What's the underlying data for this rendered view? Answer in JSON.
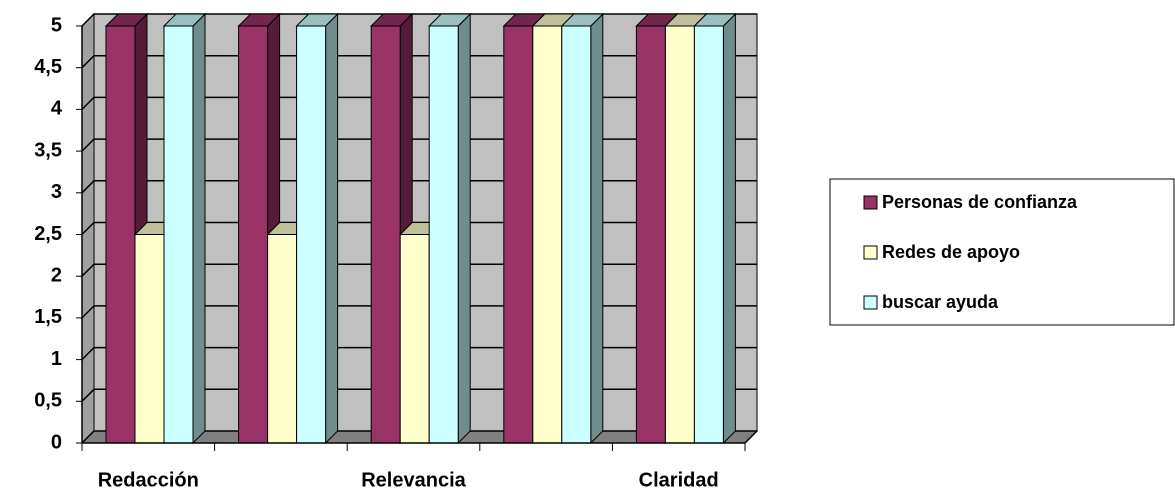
{
  "chart_data": {
    "type": "bar3d",
    "categories": [
      "Redacción",
      null,
      "Relevancia",
      null,
      "Claridad"
    ],
    "series": [
      {
        "name": "Personas de confianza",
        "color": "#993366",
        "values": [
          5,
          5,
          5,
          5,
          5
        ]
      },
      {
        "name": "Redes de apoyo",
        "color": "#ffffcc",
        "values": [
          2.5,
          2.5,
          2.5,
          5,
          5
        ]
      },
      {
        "name": "buscar ayuda",
        "color": "#ccffff",
        "values": [
          5,
          5,
          5,
          5,
          5
        ]
      }
    ],
    "ylim": [
      0,
      5
    ],
    "yticks": [
      0,
      {
        "value": 0.5,
        "label": "0,5"
      },
      1,
      {
        "value": 1.5,
        "label": "1,5"
      },
      2,
      {
        "value": 2.5,
        "label": "2,5"
      },
      3,
      {
        "value": 3.5,
        "label": "3,5"
      },
      4,
      {
        "value": 4.5,
        "label": "4,5"
      },
      5
    ],
    "grid": true,
    "legend": "right"
  }
}
